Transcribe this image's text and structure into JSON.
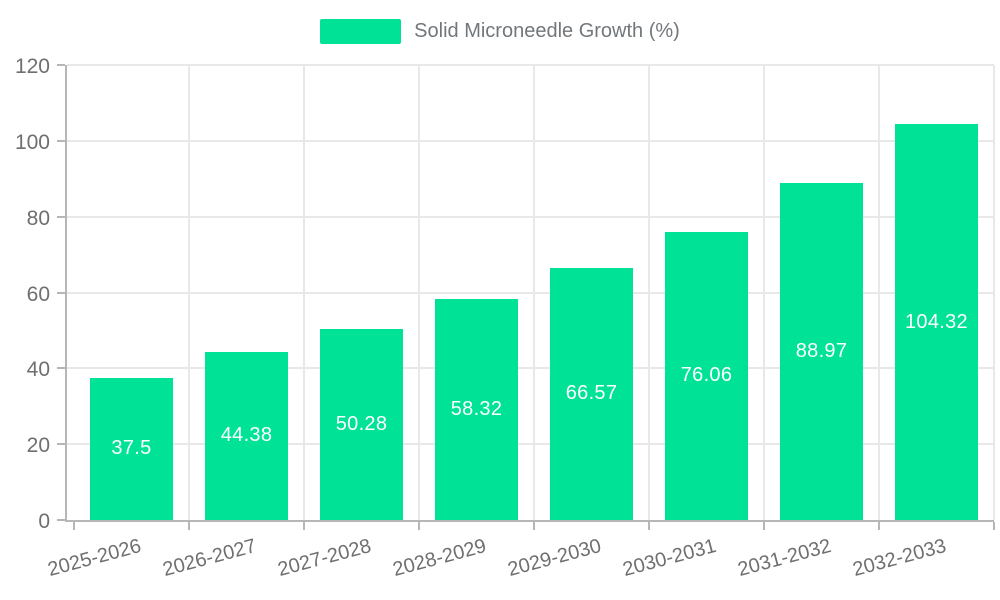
{
  "chart_data": {
    "type": "bar",
    "title": "Solid Microneedle Growth (%)",
    "categories": [
      "2025-2026",
      "2026-2027",
      "2027-2028",
      "2028-2029",
      "2029-2030",
      "2030-2031",
      "2031-2032",
      "2032-2033"
    ],
    "series": [
      {
        "name": "Solid Microneedle Growth (%)",
        "values": [
          37.5,
          44.38,
          50.28,
          58.32,
          66.57,
          76.06,
          88.97,
          104.32
        ]
      }
    ],
    "value_labels": [
      "37.5",
      "44.38",
      "50.28",
      "58.32",
      "66.57",
      "76.06",
      "88.97",
      "104.32"
    ],
    "xlabel": "",
    "ylabel": "",
    "ylim": [
      0,
      120
    ],
    "yticks": [
      0,
      20,
      40,
      60,
      80,
      100,
      120
    ],
    "grid": true,
    "legend_position": "top",
    "colors": {
      "bar": "#00E396",
      "bar_label": "#ffffff",
      "axis_label": "#6f6f6f",
      "legend_label": "#72777b",
      "grid_line": "#e8e8e8",
      "axis_line": "#b6b6b6"
    }
  }
}
